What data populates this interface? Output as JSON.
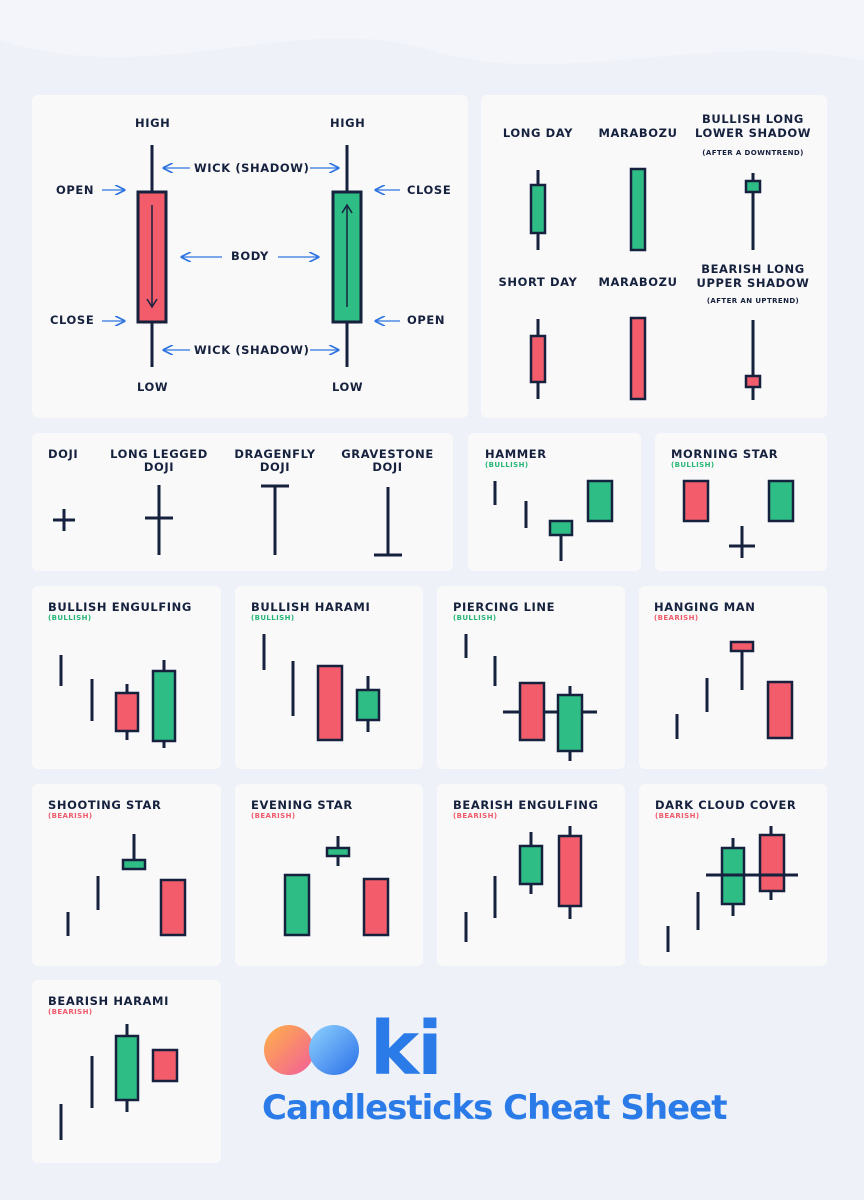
{
  "colors": {
    "bullish": "#2ebd85",
    "bearish": "#f25c6b",
    "ink": "#16213e",
    "arrow": "#2f74e0",
    "brand": "#2a7be8"
  },
  "anatomy": {
    "high_left": "HIGH",
    "high_right": "HIGH",
    "wick_top": "WICK (SHADOW)",
    "body": "BODY",
    "wick_bottom": "WICK (SHADOW)",
    "open_left": "OPEN",
    "close_left": "CLOSE",
    "close_right": "CLOSE",
    "open_right": "OPEN",
    "low_left": "LOW",
    "low_right": "LOW"
  },
  "basics": {
    "long_day": "LONG DAY",
    "marabozu_top": "MARABOZU",
    "bullish_long_lower_shadow": "BULLISH LONG LOWER SHADOW",
    "bullish_long_lower_note": "(AFTER A DOWNTREND)",
    "short_day": "SHORT DAY",
    "marabozu_bottom": "MARABOZU",
    "bearish_long_upper_shadow": "BEARISH LONG UPPER SHADOW",
    "bearish_long_upper_note": "(AFTER AN UPTREND)"
  },
  "dojis": {
    "doji": "DOJI",
    "long_legged": "LONG LEGGED DOJI",
    "dragonfly": "DRAGENFLY DOJI",
    "gravestone": "GRAVESTONE DOJI"
  },
  "patterns": [
    {
      "title": "HAMMER",
      "sentiment": "(BULLISH)"
    },
    {
      "title": "MORNING STAR",
      "sentiment": "(BULLISH)"
    },
    {
      "title": "BULLISH ENGULFING",
      "sentiment": "(BULLISH)"
    },
    {
      "title": "BULLISH HARAMI",
      "sentiment": "(BULLISH)"
    },
    {
      "title": "PIERCING LINE",
      "sentiment": "(BULLISH)"
    },
    {
      "title": "HANGING MAN",
      "sentiment": "(BEARISH)"
    },
    {
      "title": "SHOOTING STAR",
      "sentiment": "(BEARISH)"
    },
    {
      "title": "EVENING STAR",
      "sentiment": "(BEARISH)"
    },
    {
      "title": "BEARISH ENGULFING",
      "sentiment": "(BEARISH)"
    },
    {
      "title": "DARK CLOUD COVER",
      "sentiment": "(BEARISH)"
    },
    {
      "title": "BEARISH HARAMI",
      "sentiment": "(BEARISH)"
    }
  ],
  "brand": {
    "logo_text": "ki",
    "headline": "Candlesticks Cheat Sheet"
  }
}
